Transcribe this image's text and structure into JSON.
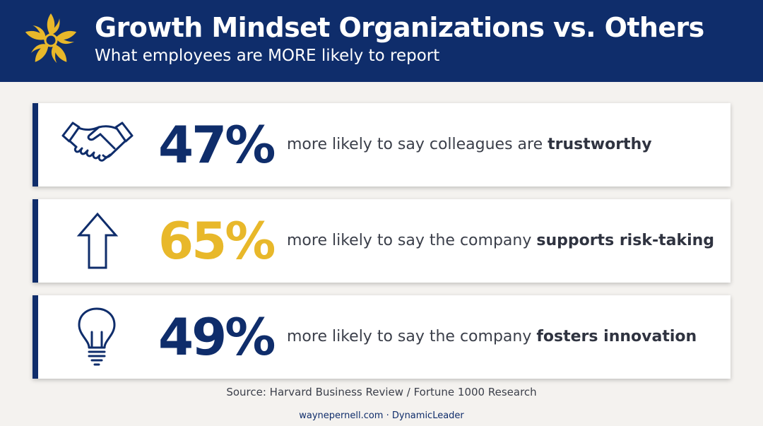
{
  "header": {
    "title": "Growth Mindset Organizations vs. Others",
    "subtitle": "What employees are MORE likely to report"
  },
  "stats": [
    {
      "icon": "handshake-icon",
      "percent": "47%",
      "text": "more likely to say colleagues are ",
      "emphasis": "trustworthy",
      "color": "#0f2d6b"
    },
    {
      "icon": "up-arrow-icon",
      "percent": "65%",
      "text": "more likely to say the company ",
      "emphasis": "supports risk-taking",
      "color": "#e8b82a"
    },
    {
      "icon": "lightbulb-icon",
      "percent": "49%",
      "text": "more likely to say the company ",
      "emphasis": "fosters innovation",
      "color": "#0f2d6b"
    }
  ],
  "source": "Source: Harvard Business Review / Fortune 1000 Research",
  "footer": "waynepernell.com · DynamicLeader",
  "colors": {
    "navy": "#0f2d6b",
    "gold": "#e8b82a",
    "background": "#f4f2ef"
  }
}
